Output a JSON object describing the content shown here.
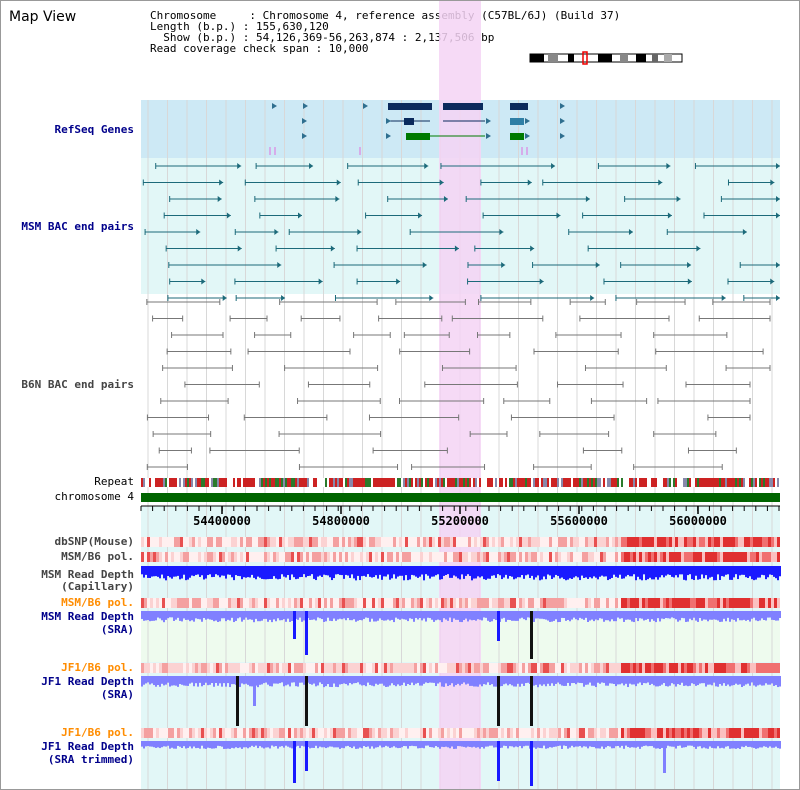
{
  "title": "Map View",
  "info": {
    "chromosome_line": "Chromosome     : Chromosome 4, reference assembly (C57BL/6J) (Build 37)",
    "length_line": "Length (b.p.) : 155,630,120",
    "show_line": "  Show (b.p.) : 54,126,369-56,263,874 : 2,137,506 bp",
    "coverage_line": "Read coverage check span : 10,000"
  },
  "tracks": {
    "refseq": "RefSeq Genes",
    "msm_bac": "MSM BAC end pairs",
    "b6n_bac": "B6N BAC end pairs",
    "repeat": "Repeat",
    "chromosome": "chromosome 4",
    "dbsnp": "dbSNP(Mouse)",
    "msm_pol_1": "MSM/B6 pol.",
    "msm_depth_cap_1": "MSM Read Depth",
    "msm_depth_cap_2": "(Capillary)",
    "msm_pol_2": "MSM/B6 pol.",
    "msm_depth_sra_1": "MSM Read Depth",
    "msm_depth_sra_2": "(SRA)",
    "jf1_pol_1": "JF1/B6 pol.",
    "jf1_depth_sra_1": "JF1 Read Depth",
    "jf1_depth_sra_2": "(SRA)",
    "jf1_pol_2": "JF1/B6 pol.",
    "jf1_depth_trim_1": "JF1 Read Depth",
    "jf1_depth_trim_2": "(SRA trimmed)"
  },
  "ruler": [
    "54400000",
    "54800000",
    "55200000",
    "55600000",
    "56000000"
  ],
  "colors": {
    "refseq_bg": "#cde9f5",
    "bac_bg": "#e2f7f7",
    "highlight": "#f5d3f5",
    "chromosome_bar": "#006400",
    "depth_blue": "#1a1aff",
    "depth_light": "#8080ff",
    "msm_line": "#1c6a7a",
    "b6n_line": "#777777"
  }
}
